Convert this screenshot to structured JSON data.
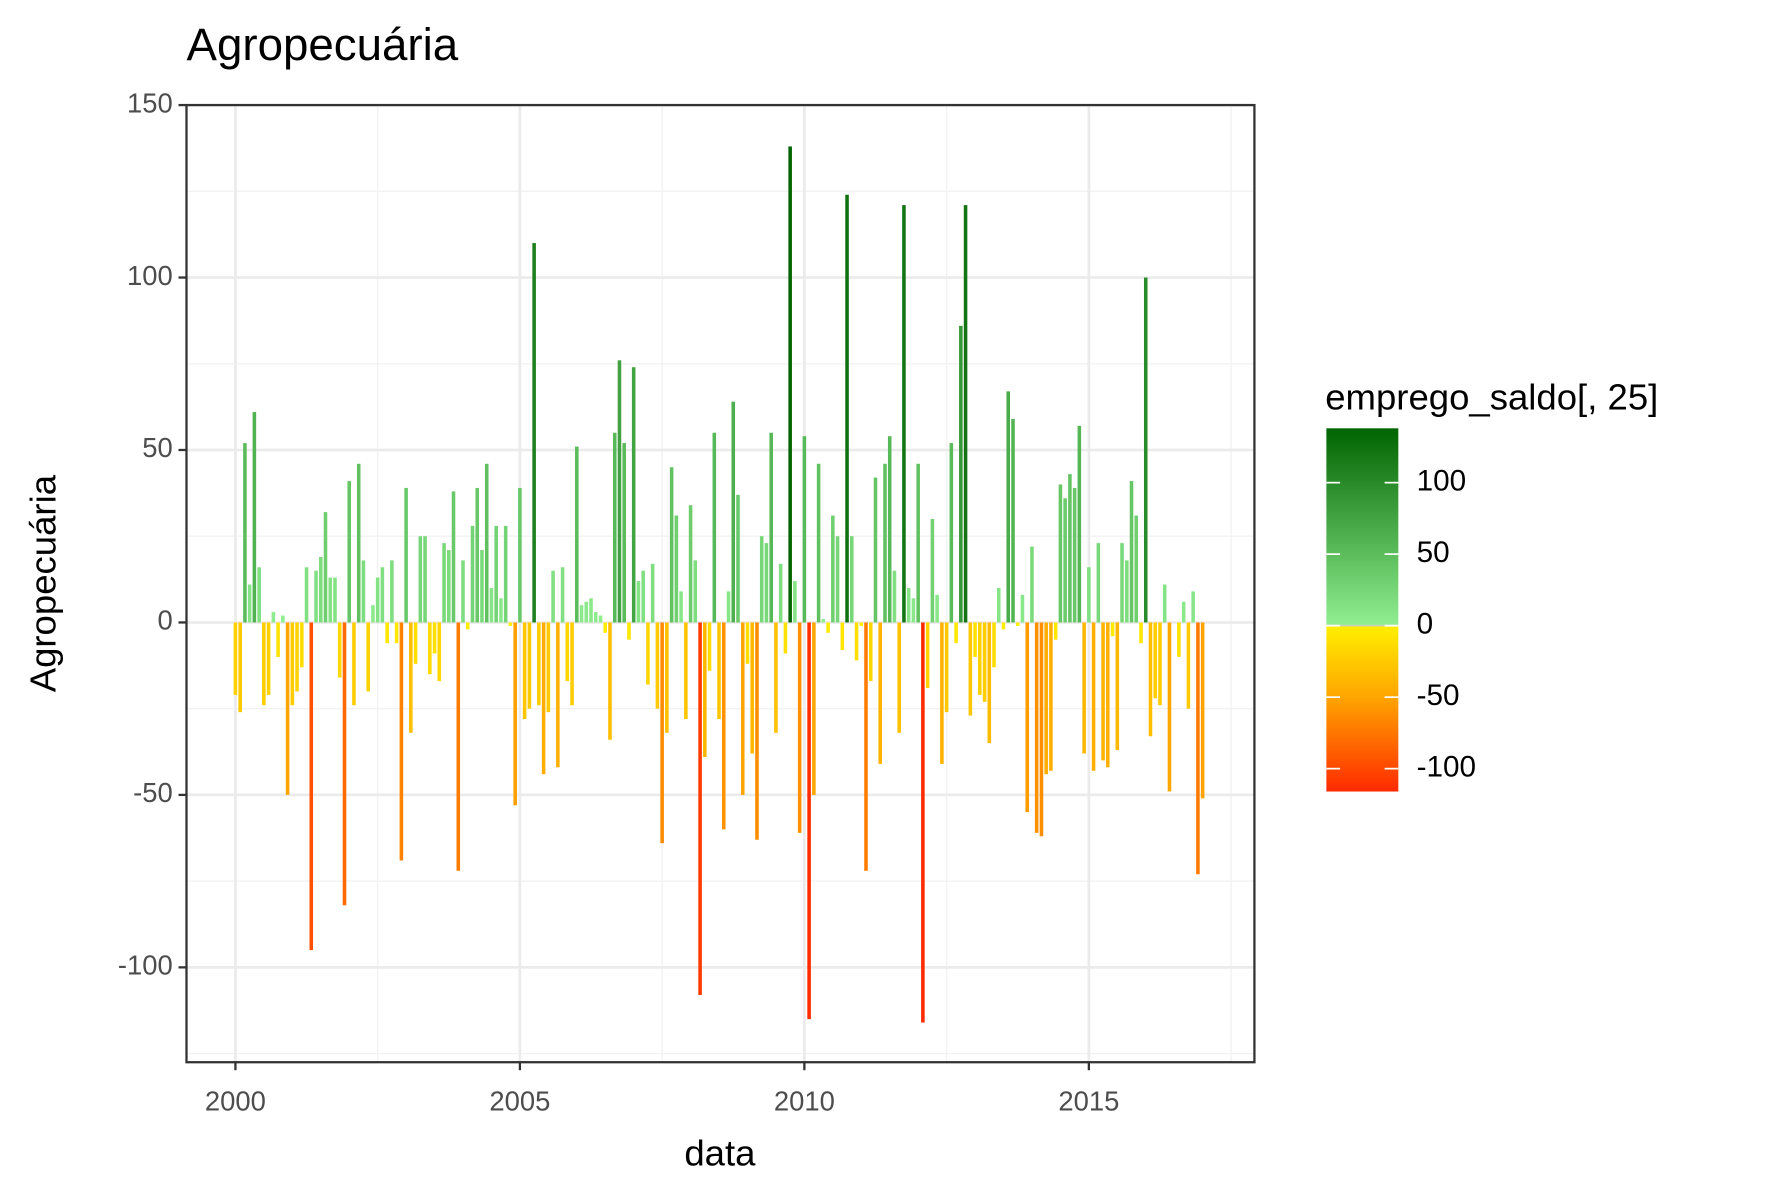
{
  "chart_data": {
    "type": "bar",
    "title": "Agropecuária",
    "x_label": "data",
    "y_label": "Agropecuária",
    "x": [
      2000,
      2000.083,
      2000.167,
      2000.25,
      2000.333,
      2000.417,
      2000.5,
      2000.583,
      2000.667,
      2000.75,
      2000.833,
      2000.917,
      2001,
      2001.083,
      2001.167,
      2001.25,
      2001.333,
      2001.417,
      2001.5,
      2001.583,
      2001.667,
      2001.75,
      2001.833,
      2001.917,
      2002,
      2002.083,
      2002.167,
      2002.25,
      2002.333,
      2002.417,
      2002.5,
      2002.583,
      2002.667,
      2002.75,
      2002.833,
      2002.917,
      2003,
      2003.083,
      2003.167,
      2003.25,
      2003.333,
      2003.417,
      2003.5,
      2003.583,
      2003.667,
      2003.75,
      2003.833,
      2003.917,
      2004,
      2004.083,
      2004.167,
      2004.25,
      2004.333,
      2004.417,
      2004.5,
      2004.583,
      2004.667,
      2004.75,
      2004.833,
      2004.917,
      2005,
      2005.083,
      2005.167,
      2005.25,
      2005.333,
      2005.417,
      2005.5,
      2005.583,
      2005.667,
      2005.75,
      2005.833,
      2005.917,
      2006,
      2006.083,
      2006.167,
      2006.25,
      2006.333,
      2006.417,
      2006.5,
      2006.583,
      2006.667,
      2006.75,
      2006.833,
      2006.917,
      2007,
      2007.083,
      2007.167,
      2007.25,
      2007.333,
      2007.417,
      2007.5,
      2007.583,
      2007.667,
      2007.75,
      2007.833,
      2007.917,
      2008,
      2008.083,
      2008.167,
      2008.25,
      2008.333,
      2008.417,
      2008.5,
      2008.583,
      2008.667,
      2008.75,
      2008.833,
      2008.917,
      2009,
      2009.083,
      2009.167,
      2009.25,
      2009.333,
      2009.417,
      2009.5,
      2009.583,
      2009.667,
      2009.75,
      2009.833,
      2009.917,
      2010,
      2010.083,
      2010.167,
      2010.25,
      2010.333,
      2010.417,
      2010.5,
      2010.583,
      2010.667,
      2010.75,
      2010.833,
      2010.917,
      2011,
      2011.083,
      2011.167,
      2011.25,
      2011.333,
      2011.417,
      2011.5,
      2011.583,
      2011.667,
      2011.75,
      2011.833,
      2011.917,
      2012,
      2012.083,
      2012.167,
      2012.25,
      2012.333,
      2012.417,
      2012.5,
      2012.583,
      2012.667,
      2012.75,
      2012.833,
      2012.917,
      2013,
      2013.083,
      2013.167,
      2013.25,
      2013.333,
      2013.417,
      2013.5,
      2013.583,
      2013.667,
      2013.75,
      2013.833,
      2013.917,
      2014,
      2014.083,
      2014.167,
      2014.25,
      2014.333,
      2014.417,
      2014.5,
      2014.583,
      2014.667,
      2014.75,
      2014.833,
      2014.917,
      2015,
      2015.083,
      2015.167,
      2015.25,
      2015.333,
      2015.417,
      2015.5,
      2015.583,
      2015.667,
      2015.75,
      2015.833,
      2015.917,
      2016,
      2016.083,
      2016.167,
      2016.25,
      2016.333,
      2016.417,
      2016.5,
      2016.583,
      2016.667,
      2016.75,
      2016.833,
      2016.917,
      2017
    ],
    "values": [
      -21,
      -26,
      52,
      11,
      61,
      16,
      -24,
      -21,
      3,
      -10,
      2,
      -50,
      -24,
      -20,
      -13,
      16,
      -95,
      15,
      19,
      32,
      13,
      13,
      -16,
      -82,
      41,
      -24,
      46,
      18,
      -20,
      5,
      13,
      16,
      -6,
      18,
      -6,
      -69,
      39,
      -32,
      -12,
      25,
      25,
      -15,
      -9,
      -17,
      23,
      21,
      38,
      -72,
      18,
      -2,
      28,
      39,
      21,
      46,
      10,
      28,
      7,
      28,
      -1,
      -53,
      39,
      -28,
      -25,
      110,
      -24,
      -44,
      -26,
      15,
      -42,
      16,
      -17,
      -24,
      51,
      5,
      6,
      7,
      3,
      2,
      -3,
      -34,
      55,
      76,
      52,
      -5,
      74,
      12,
      15,
      -18,
      17,
      -25,
      -64,
      -32,
      45,
      31,
      9,
      -28,
      34,
      18,
      -108,
      -39,
      -14,
      55,
      -28,
      -60,
      9,
      64,
      37,
      -50,
      -12,
      -38,
      -63,
      25,
      23,
      55,
      -32,
      17,
      -9,
      138,
      12,
      -61,
      54,
      -115,
      -50,
      46,
      1,
      -3,
      31,
      25,
      -8,
      124,
      25,
      -11,
      -1,
      -72,
      -17,
      42,
      -41,
      46,
      54,
      15,
      -32,
      121,
      10,
      7,
      46,
      -116,
      -19,
      30,
      8,
      -41,
      -26,
      52,
      -6,
      86,
      121,
      -27,
      -10,
      -21,
      -23,
      -35,
      -13,
      10,
      -2,
      67,
      59,
      -1,
      8,
      -55,
      22,
      -61,
      -62,
      -44,
      -43,
      -5,
      40,
      36,
      43,
      39,
      57,
      -38,
      16,
      -43,
      23,
      -40,
      -42,
      -4,
      -37,
      23,
      18,
      41,
      31,
      -6,
      100,
      -33,
      -22,
      -24,
      11,
      -49,
      0,
      -10,
      6,
      -25,
      9,
      -73,
      -51
    ],
    "xlim": [
      1999.14,
      2017.91
    ],
    "xticks": [
      2000,
      2005,
      2010,
      2015
    ],
    "x_minor_ticks": [
      2002.5,
      2007.5,
      2012.5,
      2017.5
    ],
    "ylim": [
      -127.5,
      150
    ],
    "yticks": [
      -100,
      -50,
      0,
      50,
      100,
      150
    ],
    "y_minor_ticks": [
      -125,
      -75,
      -25,
      25,
      75,
      125
    ],
    "grid": true,
    "legend": {
      "title": "emprego_saldo[, 25]",
      "lim": [
        -116,
        138
      ],
      "ticks": [
        100,
        50,
        0,
        -50,
        -100
      ]
    },
    "colorscale": [
      {
        "value": -116,
        "color": "#ff2a00"
      },
      {
        "value": -50,
        "color": "#ffa500"
      },
      {
        "value": -1,
        "color": "#ffee00"
      },
      {
        "value": 0,
        "color": "#cccccc"
      },
      {
        "value": 1,
        "color": "#90ee90"
      },
      {
        "value": 138,
        "color": "#006400"
      }
    ]
  }
}
